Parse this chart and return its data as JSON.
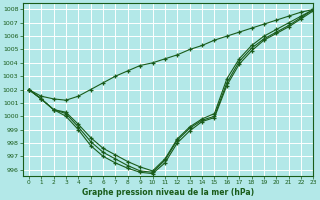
{
  "background_color": "#b3e8e8",
  "grid_color": "#ffffff",
  "line_color": "#1a5c1a",
  "xlabel": "Graphe pression niveau de la mer (hPa)",
  "xlim": [
    -0.5,
    23
  ],
  "ylim": [
    995.5,
    1008.5
  ],
  "yticks": [
    996,
    997,
    998,
    999,
    1000,
    1001,
    1002,
    1003,
    1004,
    1005,
    1006,
    1007,
    1008
  ],
  "xticks": [
    0,
    1,
    2,
    3,
    4,
    5,
    6,
    7,
    8,
    9,
    10,
    11,
    12,
    13,
    14,
    15,
    16,
    17,
    18,
    19,
    20,
    21,
    22,
    23
  ],
  "line1": [
    1002,
    1001.5,
    1001.3,
    1001.2,
    1001.5,
    1002.0,
    1002.5,
    1003.0,
    1003.4,
    1003.8,
    1004.0,
    1004.3,
    1004.6,
    1005.0,
    1005.3,
    1005.7,
    1006.0,
    1006.3,
    1006.6,
    1006.9,
    1007.2,
    1007.5,
    1007.8,
    1008.0
  ],
  "line2": [
    1002,
    1001.3,
    1000.5,
    1000.3,
    999.4,
    998.4,
    997.6,
    997.1,
    996.6,
    996.2,
    995.9,
    996.8,
    998.3,
    999.2,
    999.8,
    1000.2,
    1002.8,
    1004.3,
    1005.3,
    1006.0,
    1006.5,
    1007.0,
    1007.5,
    1008.0
  ],
  "line3": [
    1002,
    1001.3,
    1000.5,
    1000.2,
    999.2,
    998.1,
    997.3,
    996.8,
    996.3,
    995.9,
    995.8,
    996.7,
    998.2,
    999.1,
    999.7,
    1000.0,
    1002.5,
    1004.1,
    1005.1,
    1005.8,
    1006.3,
    1006.8,
    1007.4,
    1008.0
  ],
  "line4": [
    1002,
    1001.3,
    1000.5,
    1000.0,
    999.0,
    997.8,
    997.0,
    996.5,
    996.1,
    995.8,
    995.7,
    996.5,
    998.0,
    998.9,
    999.6,
    999.9,
    1002.3,
    1003.9,
    1004.9,
    1005.7,
    1006.2,
    1006.7,
    1007.3,
    1007.9
  ]
}
